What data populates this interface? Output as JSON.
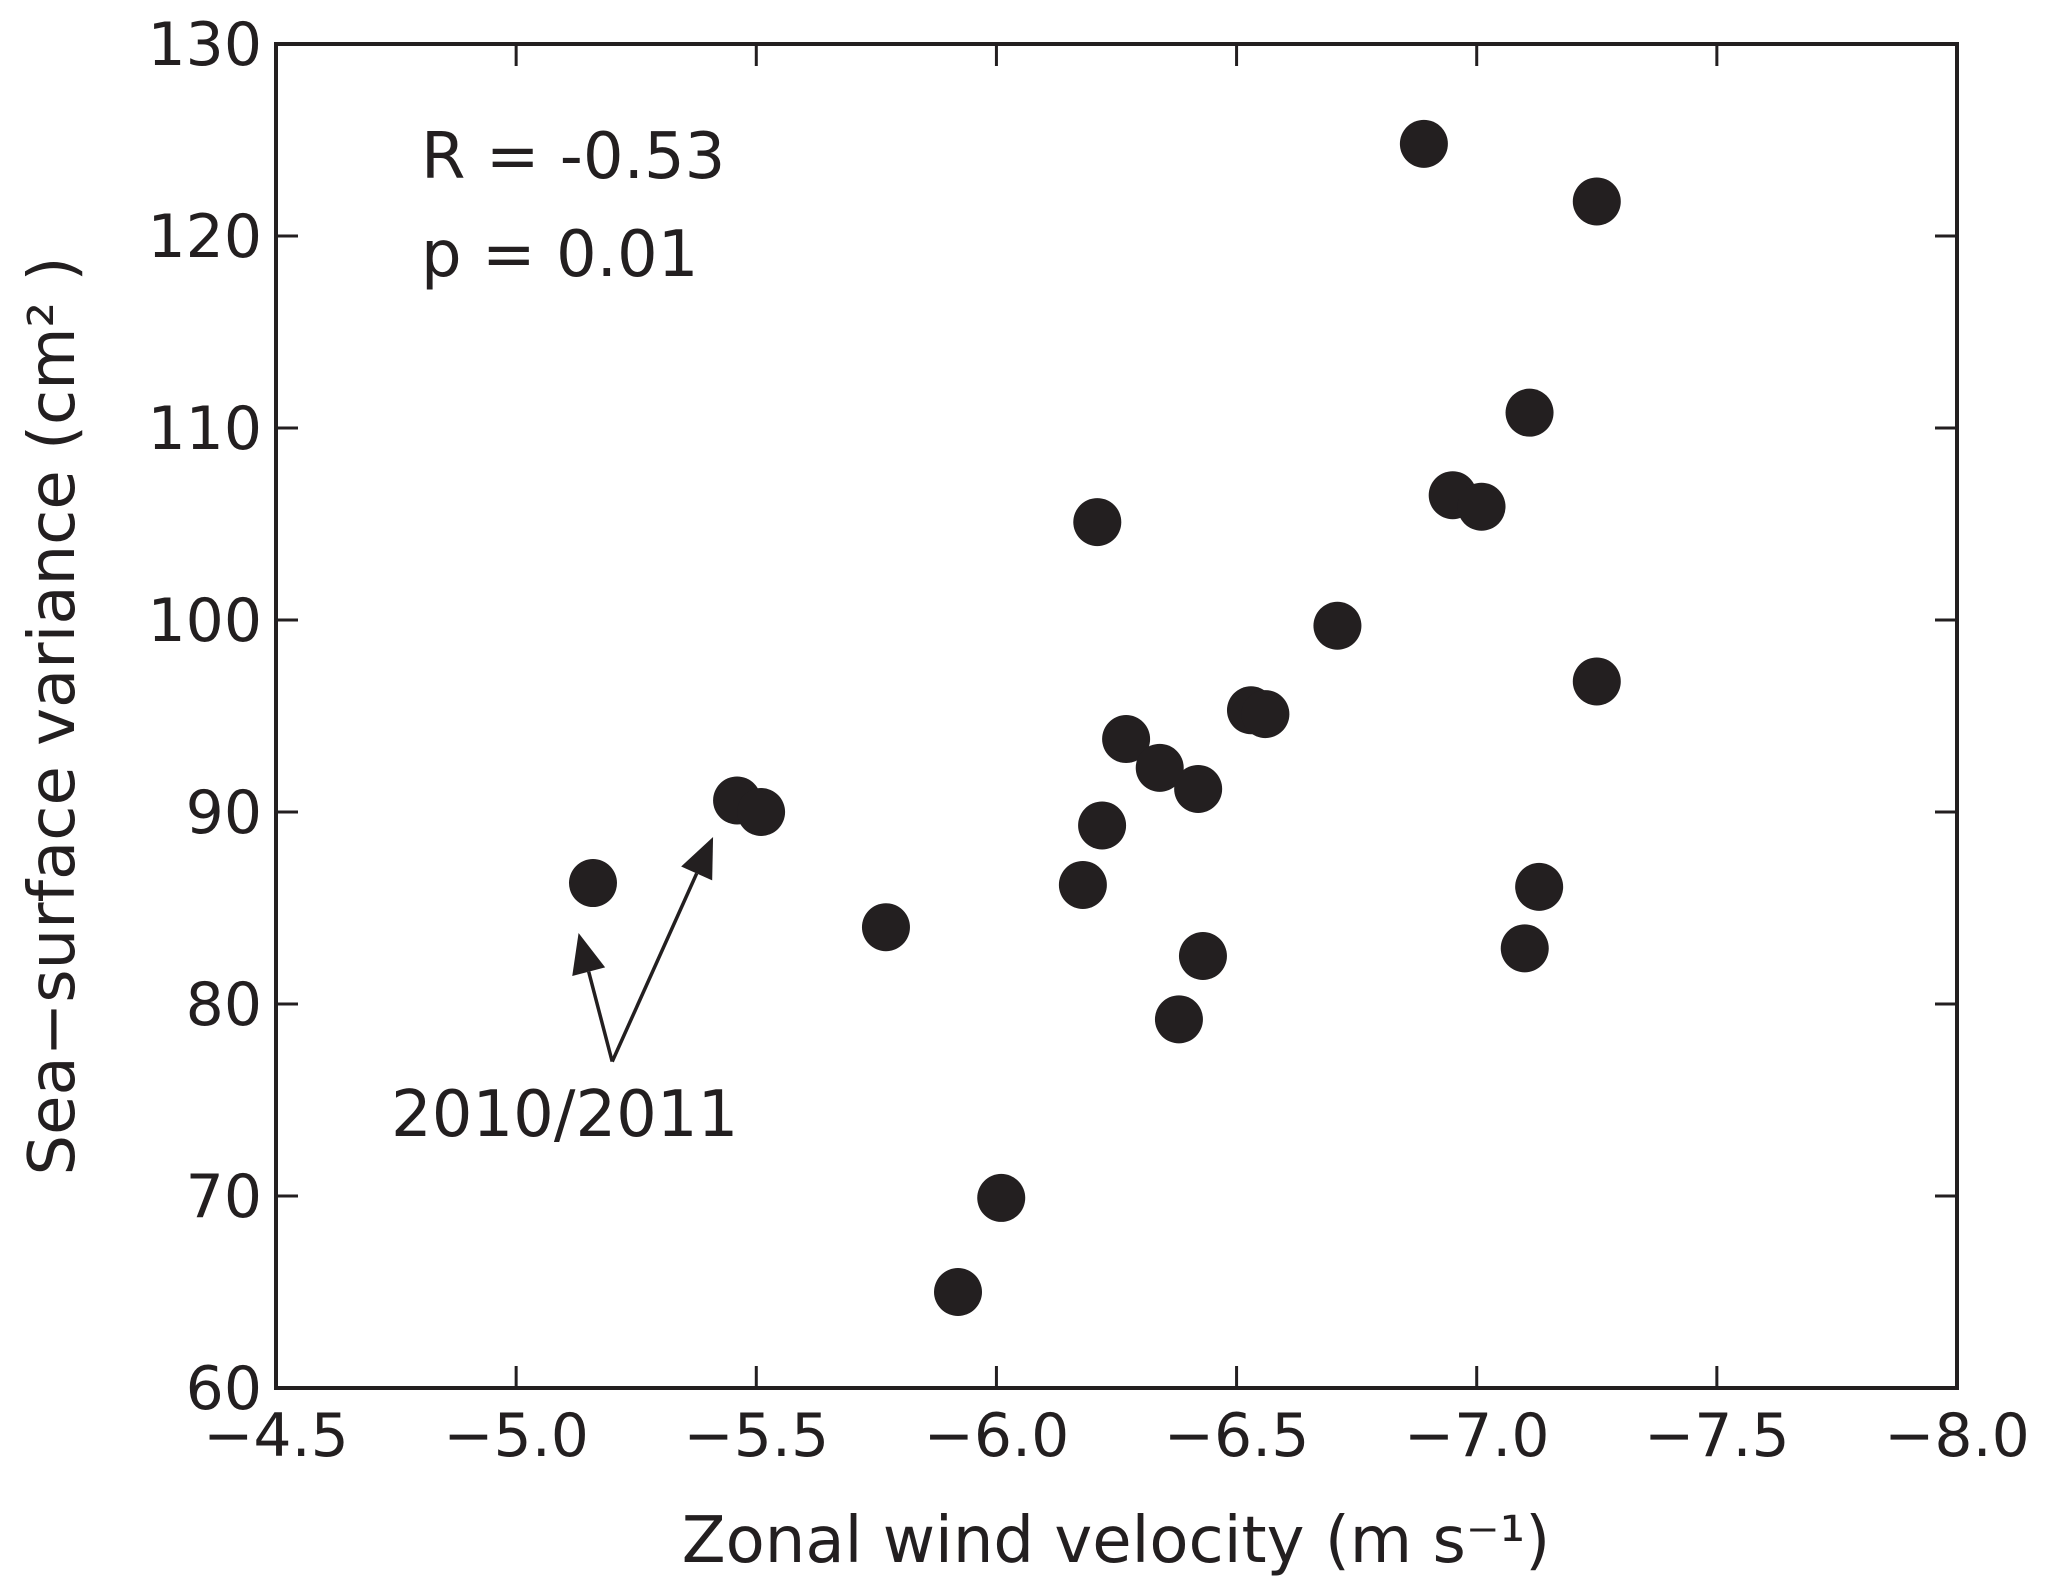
{
  "chart_data": {
    "type": "scatter",
    "xlabel": "Zonal wind velocity (m s⁻¹)",
    "ylabel": "Sea−surface variance (cm² )",
    "xlim": [
      -4.5,
      -8.0
    ],
    "ylim": [
      60,
      130
    ],
    "x_reversed": true,
    "xticks": [
      -4.5,
      -5.0,
      -5.5,
      -6.0,
      -6.5,
      -7.0,
      -7.5,
      -8.0
    ],
    "xtick_labels": [
      "−4.5",
      "−5.0",
      "−5.5",
      "−6.0",
      "−6.5",
      "−7.0",
      "−7.5",
      "−8.0"
    ],
    "yticks": [
      60,
      70,
      80,
      90,
      100,
      110,
      120,
      130
    ],
    "ytick_labels": [
      "60",
      "70",
      "80",
      "90",
      "100",
      "110",
      "120",
      "130"
    ],
    "grid": false,
    "marker_color": "#231f20",
    "points": [
      {
        "x": -5.16,
        "y": 86.3
      },
      {
        "x": -5.46,
        "y": 90.6
      },
      {
        "x": -5.51,
        "y": 90.0
      },
      {
        "x": -5.77,
        "y": 84.0
      },
      {
        "x": -5.92,
        "y": 65.0
      },
      {
        "x": -6.01,
        "y": 69.9
      },
      {
        "x": -6.18,
        "y": 86.2
      },
      {
        "x": -6.21,
        "y": 105.1
      },
      {
        "x": -6.22,
        "y": 89.3
      },
      {
        "x": -6.27,
        "y": 93.8
      },
      {
        "x": -6.34,
        "y": 92.3
      },
      {
        "x": -6.38,
        "y": 79.2
      },
      {
        "x": -6.42,
        "y": 91.2
      },
      {
        "x": -6.43,
        "y": 82.5
      },
      {
        "x": -6.53,
        "y": 95.3
      },
      {
        "x": -6.56,
        "y": 95.1
      },
      {
        "x": -6.71,
        "y": 99.7
      },
      {
        "x": -6.89,
        "y": 124.8
      },
      {
        "x": -6.95,
        "y": 106.5
      },
      {
        "x": -7.01,
        "y": 105.9
      },
      {
        "x": -7.1,
        "y": 82.9
      },
      {
        "x": -7.11,
        "y": 110.8
      },
      {
        "x": -7.13,
        "y": 86.1
      },
      {
        "x": -7.25,
        "y": 121.8
      },
      {
        "x": -7.25,
        "y": 96.8
      }
    ],
    "annotations": {
      "r_text": "R = -0.53",
      "p_text": "p = 0.01",
      "arrow_label": "2010/2011",
      "arrow_tail": {
        "x": -5.2,
        "y": 77
      },
      "arrow_targets": [
        {
          "x": -5.13,
          "y": 83.7
        },
        {
          "x": -5.41,
          "y": 88.7
        }
      ]
    }
  }
}
